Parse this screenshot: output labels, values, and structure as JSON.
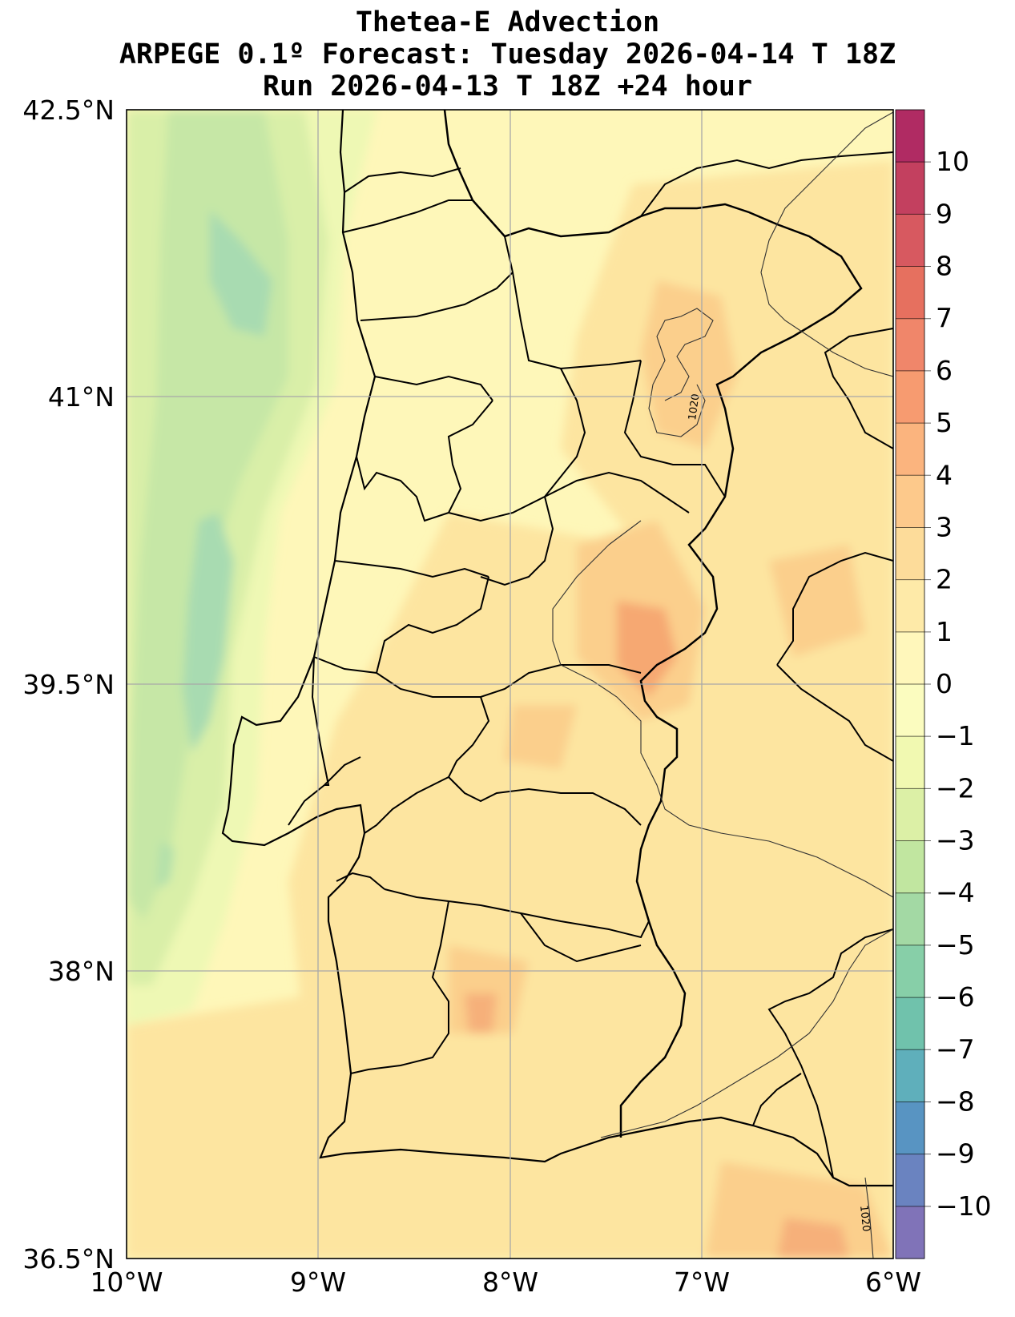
{
  "title": {
    "line1": "Thetea-E Advection",
    "line2": "ARPEGE 0.1º Forecast: Tuesday 2026-04-14 T 18Z",
    "line3": "Run 2026-04-13 T 18Z +24 hour"
  },
  "map": {
    "extent": {
      "lon_min": -10,
      "lon_max": -6,
      "lat_min": 36.5,
      "lat_max": 42.5
    },
    "lat_labels": [
      "42.5°N",
      "41°N",
      "39.5°N",
      "38°N",
      "36.5°N"
    ],
    "lon_labels": [
      "10°W",
      "9°W",
      "8°W",
      "7°W",
      "6°W"
    ],
    "contour_labels": [
      "1020",
      "1020"
    ],
    "colors": {
      "sea_west_green": "#cfe9a6",
      "sea_core_teal": "#a3d9b2",
      "land_base": "#fef7b9",
      "warm_light": "#fde5a0",
      "warm_mid": "#fbcf8c",
      "warm_hot": "#f6a872"
    }
  },
  "colorbar": {
    "ticks": [
      "10",
      "9",
      "8",
      "7",
      "6",
      "5",
      "4",
      "3",
      "2",
      "1",
      "0",
      "−1",
      "−2",
      "−3",
      "−4",
      "−5",
      "−6",
      "−7",
      "−8",
      "−9",
      "−10"
    ],
    "colors_top_to_bottom": [
      "#b02b63",
      "#c3405f",
      "#d75960",
      "#e6705f",
      "#f0866a",
      "#f79b70",
      "#fbb47e",
      "#fdc98b",
      "#fddc9a",
      "#feeaa8",
      "#fff7bb",
      "#fbfcbf",
      "#f1f9b1",
      "#dcf0a6",
      "#c1e6a0",
      "#a3d9a4",
      "#87cfa8",
      "#70c2ac",
      "#5fafbb",
      "#5894c2",
      "#6a83c0",
      "#8073b8"
    ]
  }
}
